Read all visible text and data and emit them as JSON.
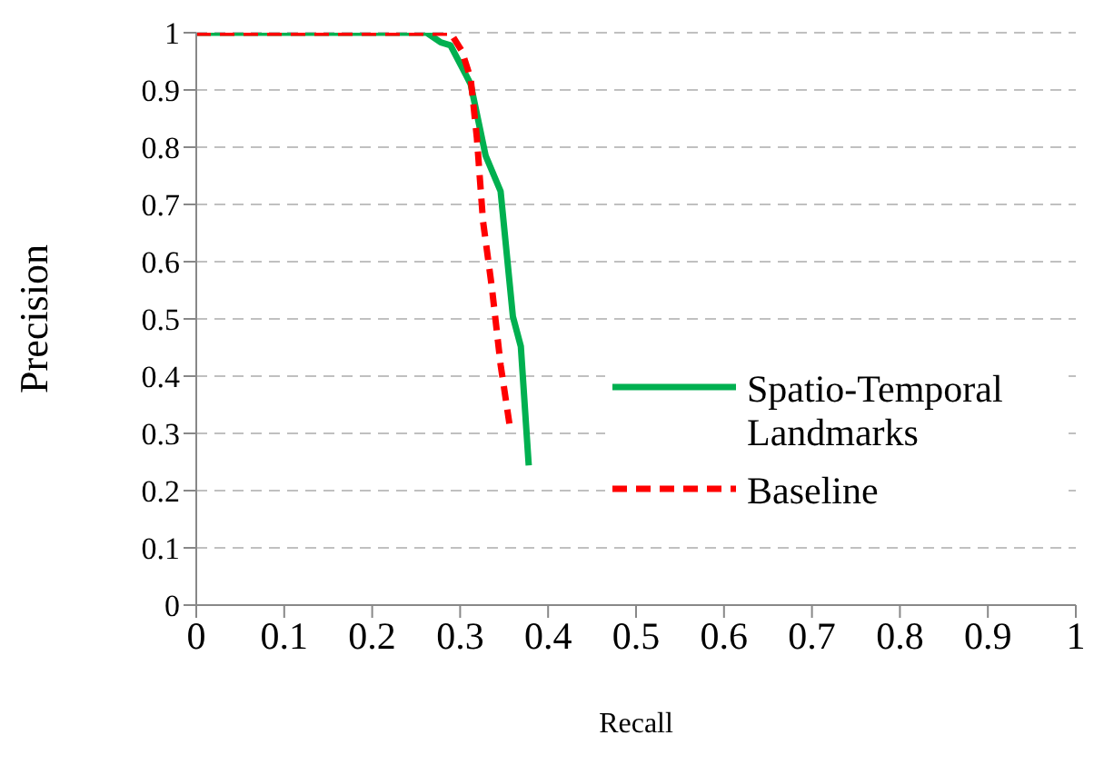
{
  "chart_data": {
    "type": "line",
    "xlabel": "Recall",
    "ylabel": "Precision",
    "xlim": [
      0,
      1
    ],
    "xticks": [
      0,
      0.1,
      0.2,
      0.3,
      0.4,
      0.5,
      0.6,
      0.7,
      0.8,
      0.9,
      1
    ],
    "ylim": [
      0,
      1
    ],
    "yticks": [
      0,
      0.1,
      0.2,
      0.3,
      0.4,
      0.5,
      0.6,
      0.7,
      0.8,
      0.9,
      1
    ],
    "grid": "y",
    "legend": "right",
    "marker": "none",
    "series": [
      {
        "name": "Spatio-Temporal Landmarks",
        "color": "#00b050",
        "line_style": "solid",
        "x": [
          0,
          0.228,
          0.262,
          0.278,
          0.289,
          0.302,
          0.312,
          0.329,
          0.346,
          0.36,
          0.369,
          0.378
        ],
        "values": [
          1,
          1,
          1,
          0.983,
          0.978,
          0.94,
          0.91,
          0.785,
          0.723,
          0.504,
          0.452,
          0.244
        ]
      },
      {
        "name": "Baseline",
        "color": "#ff0000",
        "line_style": "dashed",
        "x": [
          0,
          0.289,
          0.302,
          0.312,
          0.319,
          0.326,
          0.336,
          0.346,
          0.356
        ],
        "values": [
          1,
          1,
          0.968,
          0.92,
          0.817,
          0.671,
          0.556,
          0.42,
          0.317
        ]
      }
    ]
  }
}
